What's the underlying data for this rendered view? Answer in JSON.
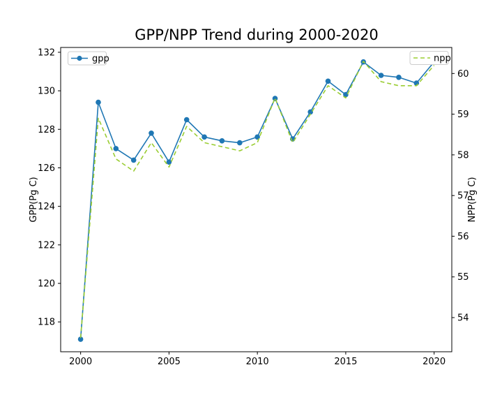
{
  "chart_data": {
    "type": "line",
    "title": "GPP/NPP Trend during 2000-2020",
    "x": [
      2000,
      2001,
      2002,
      2003,
      2004,
      2005,
      2006,
      2007,
      2008,
      2009,
      2010,
      2011,
      2012,
      2013,
      2014,
      2015,
      2016,
      2017,
      2018,
      2019,
      2020
    ],
    "series": [
      {
        "name": "gpp",
        "axis": "left",
        "color": "#1f77b4",
        "line_style": "solid",
        "marker": "circle",
        "values": [
          117.1,
          129.4,
          127.0,
          126.4,
          127.8,
          126.3,
          128.5,
          127.6,
          127.4,
          127.3,
          127.6,
          129.6,
          127.5,
          128.9,
          130.5,
          129.8,
          131.5,
          130.8,
          130.7,
          130.4,
          131.5
        ]
      },
      {
        "name": "npp",
        "axis": "right",
        "color": "#9acd32",
        "line_style": "dashed",
        "marker": "none",
        "values": [
          53.5,
          58.9,
          57.9,
          57.6,
          58.3,
          57.7,
          58.7,
          58.3,
          58.2,
          58.1,
          58.3,
          59.4,
          58.3,
          59.0,
          59.7,
          59.4,
          60.3,
          59.8,
          59.7,
          59.7,
          60.2
        ]
      }
    ],
    "xlabel": "",
    "ylabel_left": "GPP(Pg C)",
    "ylabel_right": "NPP(Pg C)",
    "x_ticks": [
      2000,
      2005,
      2010,
      2015,
      2020
    ],
    "left_ticks": [
      118,
      120,
      122,
      124,
      126,
      128,
      130,
      132
    ],
    "right_ticks": [
      54,
      55,
      56,
      57,
      58,
      59,
      60
    ],
    "x_range": [
      1998.87,
      2021.0
    ],
    "left_range": [
      116.45,
      132.25
    ],
    "right_range": [
      53.16,
      60.64
    ],
    "grid": false,
    "legend": [
      {
        "label": "gpp",
        "position": "upper-left"
      },
      {
        "label": "npp",
        "position": "upper-right"
      }
    ]
  }
}
